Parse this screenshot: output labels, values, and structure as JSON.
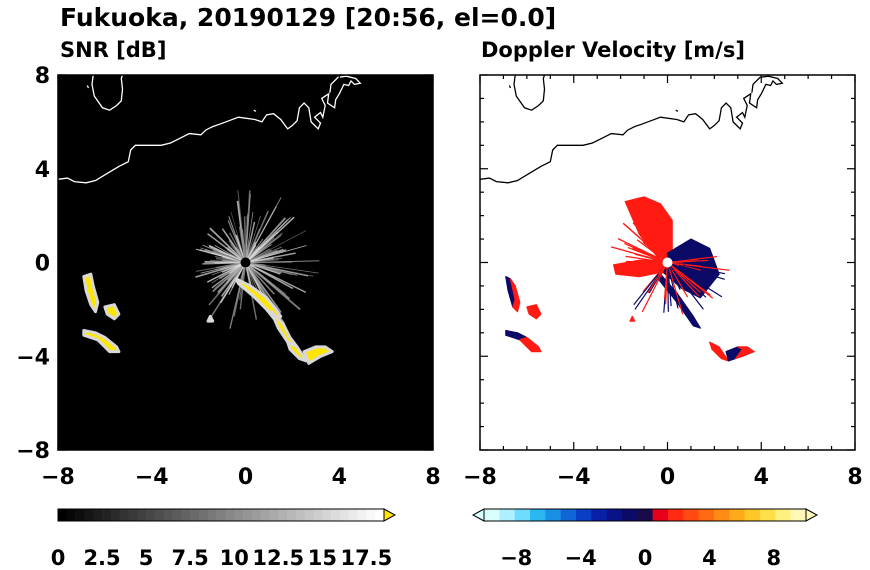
{
  "title": "Fukuoka, 20190129 [20:56, el=0.0]",
  "chart_data": [
    {
      "type": "heatmap",
      "title": "SNR [dB]",
      "xlim": [
        -8,
        8
      ],
      "ylim": [
        -8,
        8
      ],
      "x_ticks": [
        "−8",
        "−4",
        "0",
        "4",
        "8"
      ],
      "y_ticks": [
        "8",
        "4",
        "0",
        "−4",
        "−8"
      ],
      "background": "#000000",
      "colorbar": {
        "range": [
          0,
          18.5
        ],
        "tick_labels": [
          "0",
          "2.5",
          "5",
          "7.5",
          "10",
          "12.5",
          "15",
          "17.5"
        ],
        "extend": "max",
        "max_color": "#ffe600"
      },
      "echo_regions": [
        {
          "points": [
            [
              -6.9,
              -0.6
            ],
            [
              -6.8,
              -1.2
            ],
            [
              -6.6,
              -1.8
            ],
            [
              -6.4,
              -2.1
            ],
            [
              -6.3,
              -1.7
            ],
            [
              -6.5,
              -1.0
            ],
            [
              -6.6,
              -0.5
            ]
          ]
        },
        {
          "points": [
            [
              -6.0,
              -1.9
            ],
            [
              -5.6,
              -1.8
            ],
            [
              -5.4,
              -2.2
            ],
            [
              -5.6,
              -2.4
            ],
            [
              -5.9,
              -2.2
            ]
          ]
        },
        {
          "points": [
            [
              -6.9,
              -2.9
            ],
            [
              -6.4,
              -3.0
            ],
            [
              -6.0,
              -3.2
            ],
            [
              -5.5,
              -3.6
            ],
            [
              -5.4,
              -3.8
            ],
            [
              -5.8,
              -3.8
            ],
            [
              -6.3,
              -3.3
            ],
            [
              -6.9,
              -3.1
            ]
          ]
        },
        {
          "points": [
            [
              -1.5,
              -2.3
            ],
            [
              -1.4,
              -2.5
            ],
            [
              -1.6,
              -2.5
            ]
          ]
        },
        {
          "points": [
            [
              -0.4,
              -0.7
            ],
            [
              0.2,
              -1.0
            ],
            [
              0.9,
              -1.5
            ],
            [
              1.3,
              -2.0
            ],
            [
              1.5,
              -2.3
            ],
            [
              1.3,
              -2.5
            ],
            [
              0.9,
              -2.0
            ],
            [
              0.3,
              -1.4
            ],
            [
              -0.3,
              -0.9
            ]
          ]
        },
        {
          "points": [
            [
              1.1,
              -2.1
            ],
            [
              1.6,
              -2.6
            ],
            [
              1.9,
              -3.2
            ],
            [
              2.2,
              -3.6
            ],
            [
              1.8,
              -3.4
            ],
            [
              1.4,
              -2.8
            ]
          ]
        },
        {
          "points": [
            [
              1.8,
              -3.4
            ],
            [
              2.2,
              -3.6
            ],
            [
              2.6,
              -4.2
            ],
            [
              2.3,
              -4.1
            ],
            [
              1.9,
              -3.7
            ]
          ]
        },
        {
          "points": [
            [
              2.5,
              -3.8
            ],
            [
              3.0,
              -3.6
            ],
            [
              3.4,
              -3.6
            ],
            [
              3.7,
              -3.8
            ],
            [
              3.2,
              -4.0
            ],
            [
              2.7,
              -4.3
            ]
          ]
        }
      ]
    },
    {
      "type": "heatmap",
      "title": "Doppler Velocity [m/s]",
      "xlim": [
        -8,
        8
      ],
      "ylim": [
        -8,
        8
      ],
      "x_ticks": [
        "−8",
        "−4",
        "0",
        "4",
        "8"
      ],
      "background": "#ffffff",
      "colorbar": {
        "range": [
          -10,
          10
        ],
        "tick_labels": [
          "−8",
          "−4",
          "0",
          "4",
          "8"
        ],
        "extend": "both",
        "colors": [
          "#d9ffff",
          "#aef0ff",
          "#6fdcff",
          "#2bb8f0",
          "#1990e6",
          "#1166d6",
          "#0a3ec4",
          "#0820a8",
          "#0a1288",
          "#0b0a66",
          "#1a0a4a",
          "#e8001a",
          "#ff2a12",
          "#ff4a12",
          "#ff6a12",
          "#ff8a14",
          "#ffaa1a",
          "#ffc828",
          "#ffe04a",
          "#fff080",
          "#fff8b8"
        ]
      },
      "echo_regions": [
        {
          "color": "#ff1a12",
          "points": [
            [
              -1.8,
              2.6
            ],
            [
              -1.0,
              2.8
            ],
            [
              -0.3,
              2.5
            ],
            [
              0.2,
              1.8
            ],
            [
              0.2,
              0.3
            ],
            [
              -0.4,
              0.2
            ],
            [
              -1.2,
              1.2
            ]
          ]
        },
        {
          "color": "#ff1a12",
          "points": [
            [
              -2.3,
              -0.1
            ],
            [
              -1.2,
              0.1
            ],
            [
              -0.2,
              0.1
            ],
            [
              -0.2,
              -0.4
            ],
            [
              -1.2,
              -0.6
            ],
            [
              -2.2,
              -0.5
            ]
          ]
        },
        {
          "color": "#0b0a66",
          "points": [
            [
              0.0,
              0.4
            ],
            [
              1.0,
              1.0
            ],
            [
              1.8,
              0.6
            ],
            [
              2.2,
              -0.5
            ],
            [
              1.4,
              -1.5
            ],
            [
              0.6,
              -1.1
            ],
            [
              -0.2,
              -0.4
            ]
          ]
        },
        {
          "color": "#0b0a66",
          "points": [
            [
              -0.3,
              -0.5
            ],
            [
              0.4,
              -1.3
            ],
            [
              1.1,
              -2.3
            ],
            [
              1.4,
              -2.8
            ],
            [
              1.1,
              -2.7
            ],
            [
              0.4,
              -1.7
            ],
            [
              -0.4,
              -0.7
            ]
          ]
        },
        {
          "color": "#0b0a66",
          "points": [
            [
              -6.9,
              -0.6
            ],
            [
              -6.8,
              -1.2
            ],
            [
              -6.6,
              -1.9
            ],
            [
              -6.5,
              -1.6
            ],
            [
              -6.7,
              -0.7
            ]
          ]
        },
        {
          "color": "#ff1a12",
          "points": [
            [
              -6.6,
              -1.9
            ],
            [
              -6.4,
              -2.1
            ],
            [
              -6.3,
              -1.7
            ],
            [
              -6.5,
              -1.0
            ],
            [
              -6.7,
              -0.7
            ],
            [
              -6.5,
              -1.6
            ]
          ]
        },
        {
          "color": "#ff1a12",
          "points": [
            [
              -6.0,
              -1.9
            ],
            [
              -5.6,
              -1.8
            ],
            [
              -5.4,
              -2.2
            ],
            [
              -5.6,
              -2.4
            ],
            [
              -5.9,
              -2.2
            ]
          ]
        },
        {
          "color": "#0b0a66",
          "points": [
            [
              -6.9,
              -2.9
            ],
            [
              -6.4,
              -3.0
            ],
            [
              -6.0,
              -3.2
            ],
            [
              -6.3,
              -3.3
            ],
            [
              -6.9,
              -3.1
            ]
          ]
        },
        {
          "color": "#ff1a12",
          "points": [
            [
              -6.0,
              -3.2
            ],
            [
              -5.5,
              -3.6
            ],
            [
              -5.4,
              -3.8
            ],
            [
              -5.8,
              -3.8
            ],
            [
              -6.3,
              -3.3
            ]
          ]
        },
        {
          "color": "#ff1a12",
          "points": [
            [
              -1.5,
              -2.3
            ],
            [
              -1.4,
              -2.5
            ],
            [
              -1.6,
              -2.5
            ]
          ]
        },
        {
          "color": "#ff1a12",
          "points": [
            [
              1.8,
              -3.4
            ],
            [
              2.2,
              -3.6
            ],
            [
              2.6,
              -4.2
            ],
            [
              2.3,
              -4.1
            ],
            [
              1.9,
              -3.7
            ]
          ]
        },
        {
          "color": "#0b0a66",
          "points": [
            [
              2.5,
              -3.8
            ],
            [
              3.0,
              -3.6
            ],
            [
              3.2,
              -3.7
            ],
            [
              2.9,
              -4.1
            ],
            [
              2.6,
              -4.2
            ]
          ]
        },
        {
          "color": "#ff1a12",
          "points": [
            [
              3.0,
              -3.6
            ],
            [
              3.4,
              -3.6
            ],
            [
              3.7,
              -3.8
            ],
            [
              3.2,
              -4.0
            ],
            [
              2.9,
              -4.1
            ],
            [
              3.2,
              -3.7
            ]
          ]
        }
      ]
    }
  ],
  "coastline": {
    "color": "#ffffff_on_dark/#000000_on_light",
    "paths": [
      [
        [
          -8.0,
          3.55
        ],
        [
          -7.6,
          3.6
        ],
        [
          -7.3,
          3.45
        ],
        [
          -6.8,
          3.4
        ],
        [
          -6.4,
          3.5
        ],
        [
          -5.9,
          3.8
        ],
        [
          -5.4,
          4.1
        ],
        [
          -5.0,
          4.3
        ],
        [
          -4.9,
          4.8
        ],
        [
          -4.7,
          5.0
        ],
        [
          -4.2,
          5.0
        ],
        [
          -3.6,
          5.0
        ],
        [
          -3.2,
          5.1
        ],
        [
          -2.8,
          5.3
        ],
        [
          -2.4,
          5.5
        ],
        [
          -1.9,
          5.45
        ],
        [
          -1.7,
          5.65
        ],
        [
          -1.4,
          5.8
        ],
        [
          -1.1,
          5.9
        ],
        [
          -0.7,
          6.05
        ],
        [
          -0.3,
          6.2
        ],
        [
          0.4,
          6.1
        ],
        [
          0.7,
          6.0
        ],
        [
          0.9,
          6.3
        ],
        [
          1.2,
          6.35
        ],
        [
          1.5,
          6.1
        ],
        [
          1.8,
          5.7
        ],
        [
          2.0,
          5.85
        ],
        [
          2.2,
          6.05
        ],
        [
          2.3,
          6.6
        ],
        [
          2.5,
          6.8
        ],
        [
          2.7,
          6.6
        ],
        [
          2.8,
          6.0
        ],
        [
          3.1,
          5.7
        ],
        [
          3.2,
          5.95
        ],
        [
          2.95,
          6.2
        ],
        [
          3.2,
          6.4
        ],
        [
          3.3,
          6.2
        ],
        [
          3.4,
          6.7
        ],
        [
          3.25,
          7.0
        ],
        [
          3.55,
          7.2
        ],
        [
          3.5,
          6.8
        ],
        [
          3.8,
          6.6
        ],
        [
          3.85,
          6.95
        ],
        [
          4.0,
          7.2
        ],
        [
          4.2,
          7.6
        ],
        [
          4.4,
          7.55
        ],
        [
          4.5,
          7.75
        ],
        [
          4.65,
          7.6
        ],
        [
          4.9,
          7.65
        ],
        [
          4.7,
          7.85
        ],
        [
          4.3,
          7.95
        ],
        [
          3.95,
          7.9
        ],
        [
          3.65,
          7.6
        ],
        [
          3.6,
          7.25
        ]
      ],
      [
        [
          -6.5,
          8.0
        ],
        [
          -6.55,
          7.6
        ],
        [
          -6.45,
          7.1
        ],
        [
          -6.1,
          6.6
        ],
        [
          -5.8,
          6.5
        ],
        [
          -5.5,
          6.7
        ],
        [
          -5.3,
          6.9
        ],
        [
          -5.25,
          7.4
        ],
        [
          -5.3,
          7.85
        ],
        [
          -5.25,
          8.0
        ]
      ],
      [
        [
          -6.75,
          7.55
        ],
        [
          -6.7,
          7.45
        ]
      ],
      [
        [
          0.35,
          6.5
        ],
        [
          0.45,
          6.45
        ]
      ]
    ]
  }
}
